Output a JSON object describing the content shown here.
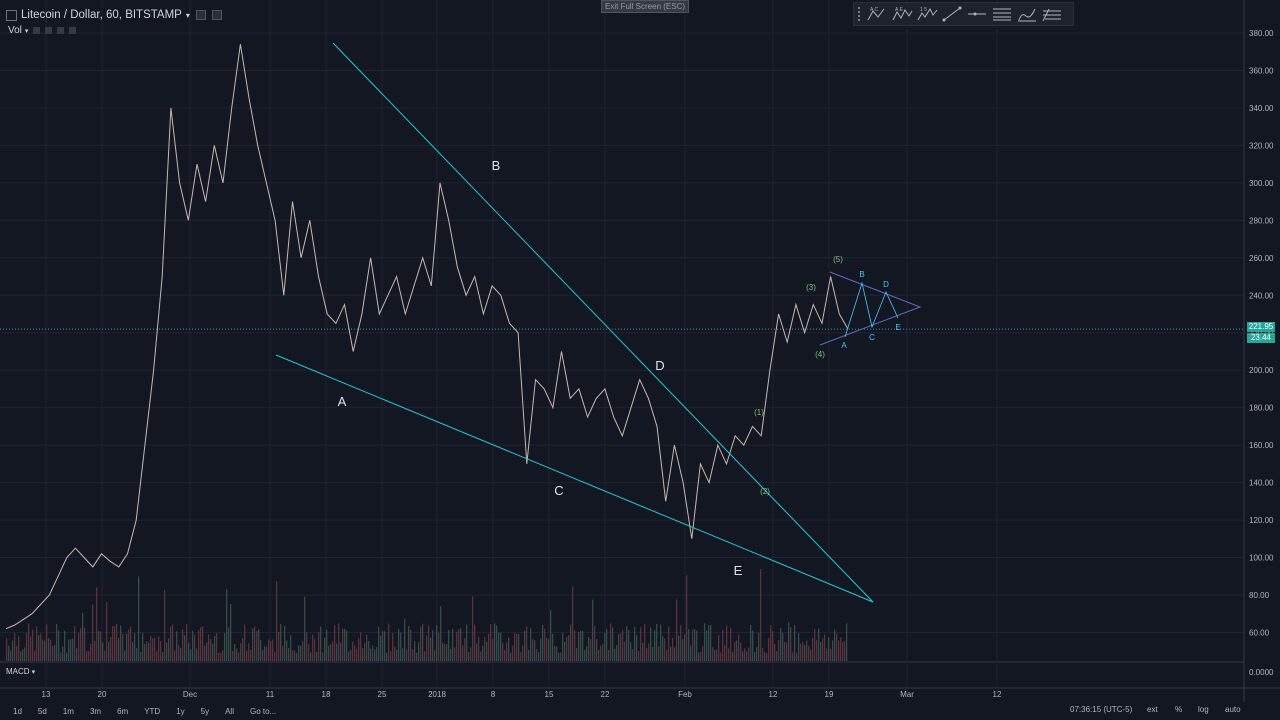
{
  "header": {
    "symbol_title": "Litecoin / Dollar, 60, BITSTAMP",
    "volume_label": "Vol",
    "exit_fullscreen": "Exit Full Screen (ESC)",
    "macd_label": "MACD"
  },
  "drawing_toolbar": {
    "tools": [
      "abc-pattern-icon",
      "abcde-pattern-icon",
      "elliott-wave-icon",
      "trend-line-icon",
      "horizontal-ray-icon",
      "fib-retracement-icon",
      "brush-icon",
      "pitchfork-icon"
    ],
    "tool_labels": [
      "A C",
      "A E",
      "1 5",
      "",
      "",
      "",
      "",
      ""
    ]
  },
  "price_axis": {
    "ticks": [
      "380.00",
      "360.00",
      "340.00",
      "320.00",
      "300.00",
      "280.00",
      "260.00",
      "240.00",
      "220.00",
      "200.00",
      "180.00",
      "160.00",
      "140.00",
      "120.00",
      "100.00",
      "80.00",
      "60.00"
    ],
    "last_price": "221.95",
    "volume_badge": "23.44",
    "macd_value": "0.0000"
  },
  "time_axis": {
    "ticks": [
      "13",
      "20",
      "Dec",
      "11",
      "18",
      "25",
      "2018",
      "8",
      "15",
      "22",
      "Feb",
      "12",
      "19",
      "Mar",
      "12"
    ]
  },
  "wave_labels": {
    "major": [
      "A",
      "B",
      "C",
      "D",
      "E"
    ],
    "green": [
      "(1)",
      "(2)",
      "(3)",
      "(4)",
      "(5)"
    ],
    "small": [
      "A",
      "B",
      "C",
      "D",
      "E"
    ]
  },
  "bottom_bar": {
    "ranges": [
      "1d",
      "5d",
      "1m",
      "3m",
      "6m",
      "YTD",
      "1y",
      "5y",
      "All",
      "Go to..."
    ],
    "time": "07:36:15 (UTC-5)",
    "options": [
      "ext",
      "%",
      "log",
      "auto"
    ]
  },
  "colors": {
    "background": "#131722",
    "trendline": "#26c6da",
    "wave_green": "#7cc576",
    "up": "#c9b7b0",
    "down": "#b85c6a",
    "small_wave": "#4fc3f7"
  },
  "chart_data": {
    "type": "candlestick",
    "symbol": "LTCUSD",
    "interval": "60",
    "ylim": [
      45,
      385
    ],
    "path_y_values": [
      62,
      64,
      67,
      70,
      75,
      80,
      90,
      100,
      105,
      100,
      95,
      102,
      98,
      95,
      102,
      120,
      160,
      200,
      250,
      340,
      300,
      280,
      310,
      290,
      320,
      300,
      340,
      374,
      345,
      320,
      300,
      280,
      240,
      290,
      260,
      280,
      250,
      230,
      225,
      235,
      210,
      230,
      260,
      230,
      240,
      250,
      230,
      245,
      260,
      245,
      300,
      280,
      255,
      240,
      250,
      230,
      245,
      240,
      225,
      220,
      150,
      195,
      190,
      180,
      210,
      185,
      190,
      175,
      185,
      190,
      175,
      165,
      180,
      195,
      185,
      170,
      130,
      160,
      140,
      110,
      150,
      140,
      160,
      150,
      165,
      160,
      170,
      165,
      200,
      230,
      215,
      235,
      220,
      235,
      225,
      250,
      230,
      222
    ],
    "path_dates_approx": "Nov 2017 - Feb 21 2018 (hourly)",
    "x_ticks": [
      "13",
      "20",
      "Dec",
      "11",
      "18",
      "25",
      "2018",
      "8",
      "15",
      "22",
      "Feb",
      "12",
      "19",
      "Mar",
      "12"
    ],
    "y_ticks": [
      380,
      360,
      340,
      320,
      300,
      280,
      260,
      240,
      220,
      200,
      180,
      160,
      140,
      120,
      100,
      80,
      60
    ],
    "last_price": 221.95,
    "last_volume": 23.44,
    "trendlines": [
      {
        "name": "upper",
        "from": [
          18,
          375
        ],
        "to": [
          72,
          75
        ]
      },
      {
        "name": "lower",
        "from": [
          11,
          205
        ],
        "to": [
          72,
          75
        ]
      }
    ]
  }
}
